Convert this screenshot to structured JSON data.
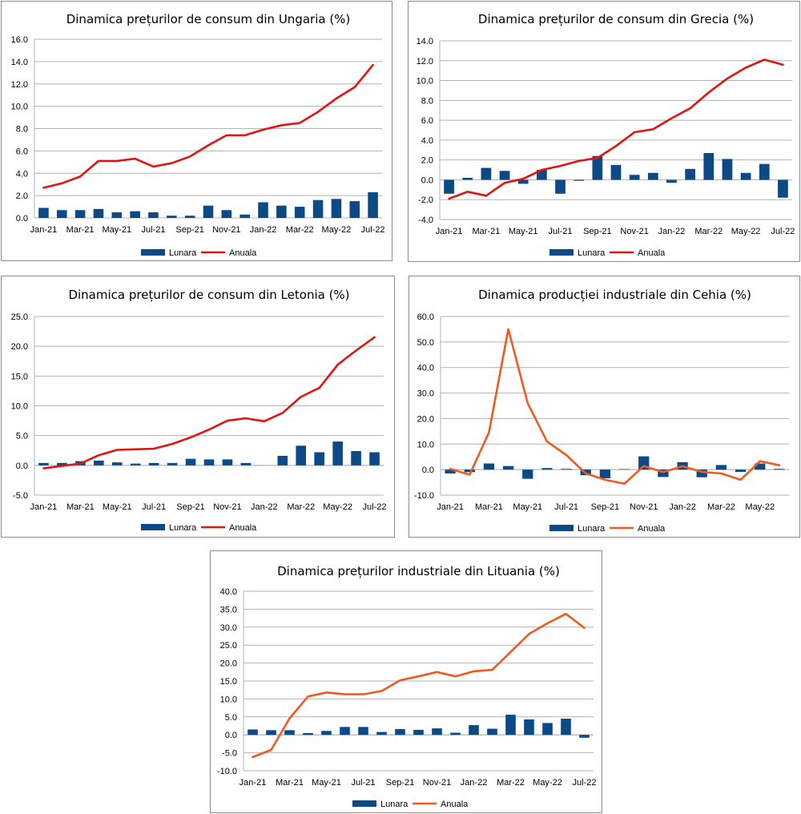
{
  "charts": [
    {
      "type": "bar+line",
      "title": "Dinamica prețurilor de consum din Ungaria (%)",
      "categories": [
        "Jan-21",
        "Feb-21",
        "Mar-21",
        "Apr-21",
        "May-21",
        "Jun-21",
        "Jul-21",
        "Aug-21",
        "Sep-21",
        "Oct-21",
        "Nov-21",
        "Dec-21",
        "Jan-22",
        "Feb-22",
        "Mar-22",
        "Apr-22",
        "May-22",
        "Jun-22",
        "Jul-22"
      ],
      "x_tick_labels": [
        "Jan-21",
        "Mar-21",
        "May-21",
        "Jul-21",
        "Sep-21",
        "Nov-21",
        "Jan-22",
        "Mar-22",
        "May-22",
        "Jul-22"
      ],
      "ylim": [
        0,
        16
      ],
      "y_ticks": [
        0,
        2,
        4,
        6,
        8,
        10,
        12,
        14,
        16
      ],
      "y_tick_labels": [
        "0.0",
        "2.0",
        "4.0",
        "6.0",
        "8.0",
        "10.0",
        "12.0",
        "14.0",
        "16.0"
      ],
      "series": [
        {
          "name": "Lunara",
          "kind": "bar",
          "color": "#0b4a87",
          "values": [
            0.9,
            0.7,
            0.7,
            0.8,
            0.5,
            0.6,
            0.5,
            0.2,
            0.2,
            1.1,
            0.7,
            0.3,
            1.4,
            1.1,
            1.0,
            1.6,
            1.7,
            1.5,
            2.3
          ]
        },
        {
          "name": "Anuala",
          "kind": "line",
          "color": "#e3140f",
          "values": [
            2.7,
            3.1,
            3.7,
            5.1,
            5.1,
            5.3,
            4.6,
            4.9,
            5.5,
            6.5,
            7.4,
            7.4,
            7.9,
            8.3,
            8.5,
            9.5,
            10.7,
            11.7,
            13.7
          ]
        }
      ]
    },
    {
      "type": "bar+line",
      "title": "Dinamica prețurilor de consum din Grecia (%)",
      "categories": [
        "Jan-21",
        "Feb-21",
        "Mar-21",
        "Apr-21",
        "May-21",
        "Jun-21",
        "Jul-21",
        "Aug-21",
        "Sep-21",
        "Oct-21",
        "Nov-21",
        "Dec-21",
        "Jan-22",
        "Feb-22",
        "Mar-22",
        "Apr-22",
        "May-22",
        "Jun-22",
        "Jul-22"
      ],
      "x_tick_labels": [
        "Jan-21",
        "Mar-21",
        "May-21",
        "Jul-21",
        "Sep-21",
        "Nov-21",
        "Jan-22",
        "Mar-22",
        "May-22",
        "Jul-22"
      ],
      "ylim": [
        -4,
        14
      ],
      "y_ticks": [
        -4,
        -2,
        0,
        2,
        4,
        6,
        8,
        10,
        12,
        14
      ],
      "y_tick_labels": [
        "-4.0",
        "-2.0",
        "0.0",
        "2.0",
        "4.0",
        "6.0",
        "8.0",
        "10.0",
        "12.0",
        "14.0"
      ],
      "series": [
        {
          "name": "Lunara",
          "kind": "bar",
          "color": "#0b4a87",
          "values": [
            -1.4,
            0.2,
            1.2,
            0.9,
            -0.4,
            1.0,
            -1.4,
            -0.1,
            2.4,
            1.5,
            0.5,
            0.7,
            -0.3,
            1.1,
            2.7,
            2.1,
            0.7,
            1.6,
            -1.8
          ]
        },
        {
          "name": "Anuala",
          "kind": "line",
          "color": "#e3140f",
          "values": [
            -1.9,
            -1.2,
            -1.6,
            -0.3,
            0.1,
            1.0,
            1.4,
            1.9,
            2.2,
            3.4,
            4.8,
            5.1,
            6.2,
            7.2,
            8.8,
            10.2,
            11.3,
            12.1,
            11.6
          ]
        }
      ]
    },
    {
      "type": "bar+line",
      "title": "Dinamica prețurilor de consum din Letonia (%)",
      "categories": [
        "Jan-21",
        "Feb-21",
        "Mar-21",
        "Apr-21",
        "May-21",
        "Jun-21",
        "Jul-21",
        "Aug-21",
        "Sep-21",
        "Oct-21",
        "Nov-21",
        "Dec-21",
        "Jan-22",
        "Feb-22",
        "Mar-22",
        "Apr-22",
        "May-22",
        "Jun-22",
        "Jul-22"
      ],
      "x_tick_labels": [
        "Jan-21",
        "Mar-21",
        "May-21",
        "Jul-21",
        "Sep-21",
        "Nov-21",
        "Jan-22",
        "Mar-22",
        "May-22",
        "Jul-22"
      ],
      "ylim": [
        -5,
        25
      ],
      "y_ticks": [
        -5,
        0,
        5,
        10,
        15,
        20,
        25
      ],
      "y_tick_labels": [
        "-5.0",
        "0.0",
        "5.0",
        "10.0",
        "15.0",
        "20.0",
        "25.0"
      ],
      "series": [
        {
          "name": "Lunara",
          "kind": "bar",
          "color": "#0b4a87",
          "values": [
            0.4,
            0.4,
            0.7,
            0.8,
            0.5,
            0.3,
            0.4,
            0.4,
            1.1,
            1.0,
            1.0,
            0.4,
            0.0,
            1.6,
            3.3,
            2.2,
            4.0,
            2.4,
            2.2
          ]
        },
        {
          "name": "Anuala",
          "kind": "line",
          "color": "#e3140f",
          "values": [
            -0.5,
            -0.1,
            0.3,
            1.7,
            2.6,
            2.7,
            2.8,
            3.6,
            4.7,
            6.0,
            7.5,
            7.9,
            7.4,
            8.8,
            11.5,
            13.0,
            16.9,
            19.3,
            21.5
          ]
        }
      ]
    },
    {
      "type": "bar+line",
      "title": "Dinamica producției industriale din Cehia (%)",
      "categories": [
        "Jan-21",
        "Feb-21",
        "Mar-21",
        "Apr-21",
        "May-21",
        "Jun-21",
        "Jul-21",
        "Aug-21",
        "Sep-21",
        "Oct-21",
        "Nov-21",
        "Dec-21",
        "Jan-22",
        "Feb-22",
        "Mar-22",
        "Apr-22",
        "May-22",
        "Jun-22"
      ],
      "x_tick_labels": [
        "Jan-21",
        "Mar-21",
        "May-21",
        "Jul-21",
        "Sep-21",
        "Nov-21",
        "Jan-22",
        "Mar-22",
        "May-22"
      ],
      "ylim": [
        -10,
        60
      ],
      "y_ticks": [
        -10,
        0,
        10,
        20,
        30,
        40,
        50,
        60
      ],
      "y_tick_labels": [
        "-10.0",
        "0.0",
        "10.0",
        "20.0",
        "30.0",
        "40.0",
        "50.0",
        "60.0"
      ],
      "series": [
        {
          "name": "Lunara",
          "kind": "bar",
          "color": "#0b4a87",
          "values": [
            -1.5,
            -1.0,
            2.4,
            1.4,
            -3.6,
            0.6,
            0.3,
            -2.2,
            -3.4,
            0.2,
            5.2,
            -2.9,
            2.9,
            -3.0,
            1.8,
            -0.9,
            2.4,
            0.3
          ]
        },
        {
          "name": "Anuala",
          "kind": "line",
          "color": "#f05a1e",
          "values": [
            0.3,
            -2.0,
            14.5,
            55.0,
            26.0,
            11.0,
            5.7,
            -1.5,
            -4.0,
            -5.5,
            1.4,
            -1.0,
            1.3,
            -0.9,
            -1.5,
            -4.0,
            3.3,
            1.7
          ]
        }
      ]
    },
    {
      "type": "bar+line",
      "title": "Dinamica prețurilor industriale din Lituania (%)",
      "categories": [
        "Jan-21",
        "Feb-21",
        "Mar-21",
        "Apr-21",
        "May-21",
        "Jun-21",
        "Jul-21",
        "Aug-21",
        "Sep-21",
        "Oct-21",
        "Nov-21",
        "Dec-21",
        "Jan-22",
        "Feb-22",
        "Mar-22",
        "Apr-22",
        "May-22",
        "Jun-22",
        "Jul-22"
      ],
      "x_tick_labels": [
        "Jan-21",
        "Mar-21",
        "May-21",
        "Jul-21",
        "Sep-21",
        "Nov-21",
        "Jan-22",
        "Mar-22",
        "May-22",
        "Jul-22"
      ],
      "ylim": [
        -10,
        40
      ],
      "y_ticks": [
        -10,
        -5,
        0,
        5,
        10,
        15,
        20,
        25,
        30,
        35,
        40
      ],
      "y_tick_labels": [
        "-10.0",
        "-5.0",
        "0.0",
        "5.0",
        "10.0",
        "15.0",
        "20.0",
        "25.0",
        "30.0",
        "35.0",
        "40.0"
      ],
      "series": [
        {
          "name": "Lunara",
          "kind": "bar",
          "color": "#0b4a87",
          "values": [
            1.5,
            1.3,
            1.3,
            0.5,
            1.1,
            2.2,
            2.2,
            0.8,
            1.6,
            1.4,
            1.8,
            0.6,
            2.7,
            1.7,
            5.6,
            4.3,
            3.3,
            4.5,
            -0.8
          ]
        },
        {
          "name": "Anuala",
          "kind": "line",
          "color": "#f05a1e",
          "values": [
            -6.2,
            -4.2,
            4.6,
            10.7,
            11.8,
            11.3,
            11.3,
            12.2,
            15.2,
            16.3,
            17.5,
            16.3,
            17.7,
            18.1,
            23.1,
            28.1,
            31.1,
            33.7,
            29.8
          ]
        }
      ]
    }
  ]
}
